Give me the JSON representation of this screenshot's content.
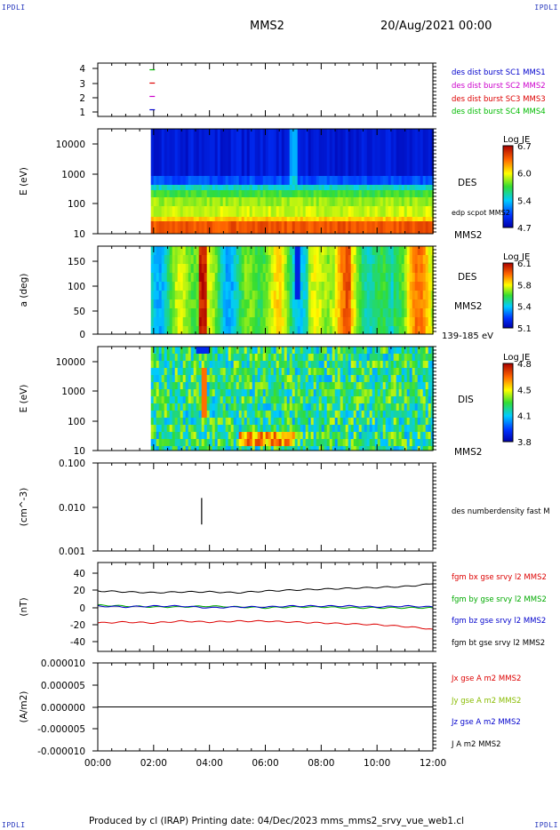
{
  "header": {
    "corner_label": "IPDLI",
    "spacecraft": "MMS2",
    "datetime": "20/Aug/2021 00:00"
  },
  "footer": {
    "text": "Produced by cl (IRAP)    Printing date: 04/Dec/2023    mms_mms2_srvy_vue_web1.cl"
  },
  "time_axis": {
    "labels": [
      "00:00",
      "02:00",
      "04:00",
      "06:00",
      "08:00",
      "10:00",
      "12:00"
    ],
    "range_hours": [
      0,
      12
    ],
    "data_start_hour": 1.9
  },
  "chart_data": [
    {
      "type": "scatter",
      "panel": "burst-availability",
      "yticks": [
        "4",
        "3",
        "2",
        "1"
      ],
      "ylim": [
        0.5,
        4.5
      ],
      "series": [
        {
          "name": "des dist burst SC1 MMS1",
          "color": "#0000cc",
          "y": 1,
          "x": [
            1.95
          ]
        },
        {
          "name": "des dist burst SC2 MMS2",
          "color": "#cc00cc",
          "y": 2,
          "x": [
            1.95
          ]
        },
        {
          "name": "des dist burst SC3 MMS3",
          "color": "#dd0000",
          "y": 3,
          "x": [
            1.95
          ]
        },
        {
          "name": "des dist burst SC4 MMS4",
          "color": "#00bb00",
          "y": 4,
          "x": [
            1.95
          ]
        }
      ]
    },
    {
      "type": "heatmap",
      "panel": "des-energy-spectrogram",
      "ylabel": "E (eV)",
      "yscale": "log",
      "ylim": [
        10,
        30000
      ],
      "yticks": [
        "10000",
        "1000",
        "100",
        "10"
      ],
      "label": "DES",
      "overlay_label": "edp scpot MMS2",
      "spacecraft_label": "MMS2",
      "colorbar": {
        "title": "Log JE",
        "ticks": [
          "6.7",
          "6.0",
          "5.4",
          "4.7"
        ],
        "range": [
          4.7,
          6.7
        ]
      }
    },
    {
      "type": "heatmap",
      "panel": "des-pitch-angle",
      "ylabel": "a (deg)",
      "ylim": [
        0,
        180
      ],
      "yticks": [
        "150",
        "100",
        "50",
        "0"
      ],
      "label": "DES",
      "spacecraft_label": "MMS2",
      "energy_label": "139-185 eV",
      "colorbar": {
        "title": "Log JE",
        "ticks": [
          "6.1",
          "5.8",
          "5.4",
          "5.1"
        ],
        "range": [
          5.1,
          6.1
        ]
      }
    },
    {
      "type": "heatmap",
      "panel": "dis-energy-spectrogram",
      "ylabel": "E (eV)",
      "yscale": "log",
      "ylim": [
        10,
        30000
      ],
      "yticks": [
        "10000",
        "1000",
        "100",
        "10"
      ],
      "label": "DIS",
      "spacecraft_label": "MMS2",
      "colorbar": {
        "title": "Log JE",
        "ticks": [
          "4.8",
          "4.5",
          "4.1",
          "3.8"
        ],
        "range": [
          3.8,
          4.8
        ]
      }
    },
    {
      "type": "line",
      "panel": "density",
      "ylabel": "(cm^-3)",
      "yscale": "log",
      "ylim": [
        0.001,
        0.1
      ],
      "yticks": [
        "0.100",
        "0.010",
        "0.001"
      ],
      "series": [
        {
          "name": "des numberdensity fast M",
          "color": "#000000",
          "x": [
            3.72,
            3.72
          ],
          "y": [
            0.004,
            0.016
          ]
        }
      ]
    },
    {
      "type": "line",
      "panel": "magnetic-field",
      "ylabel": "(nT)",
      "ylim": [
        -50,
        50
      ],
      "yticks": [
        "40",
        "20",
        "0",
        "-20",
        "-40"
      ],
      "x": [
        0,
        1,
        2,
        3,
        4,
        5,
        6,
        7,
        8,
        9,
        10,
        11,
        12
      ],
      "series": [
        {
          "name": "fgm bx gse srvy l2 MMS2",
          "color": "#dd0000",
          "values": [
            -18,
            -17,
            -18,
            -16,
            -17,
            -16,
            -16,
            -17,
            -18,
            -19,
            -20,
            -22,
            -25
          ]
        },
        {
          "name": "fgm by gse srvy l2 MMS2",
          "color": "#00aa00",
          "values": [
            2,
            1,
            0,
            0,
            1,
            0,
            -1,
            0,
            0,
            -1,
            -1,
            -1,
            -1
          ]
        },
        {
          "name": "fgm bz gse srvy l2 MMS2",
          "color": "#0000cc",
          "values": [
            1,
            0,
            1,
            1,
            -1,
            0,
            0,
            1,
            1,
            1,
            0,
            1,
            0
          ]
        },
        {
          "name": "fgm bt gse srvy l2 MMS2",
          "color": "#000000",
          "values": [
            18,
            17,
            16,
            17,
            17,
            16,
            18,
            19,
            20,
            21,
            22,
            23,
            26
          ]
        }
      ]
    },
    {
      "type": "line",
      "panel": "current-density",
      "ylabel": "(A/m2)",
      "ylim": [
        -1e-05,
        1e-05
      ],
      "yticks": [
        "0.000010",
        "0.000005",
        "0.000000",
        "-0.000005",
        "-0.000010"
      ],
      "series": [
        {
          "name": "Jx gse A m2 MMS2",
          "color": "#dd0000"
        },
        {
          "name": "Jy gse A m2 MMS2",
          "color": "#88bb00"
        },
        {
          "name": "Jz gse A m2 MMS2",
          "color": "#0000cc"
        },
        {
          "name": "J A m2 MMS2",
          "color": "#000000"
        }
      ],
      "x": [
        0,
        12
      ],
      "values": [
        0,
        0
      ]
    }
  ]
}
